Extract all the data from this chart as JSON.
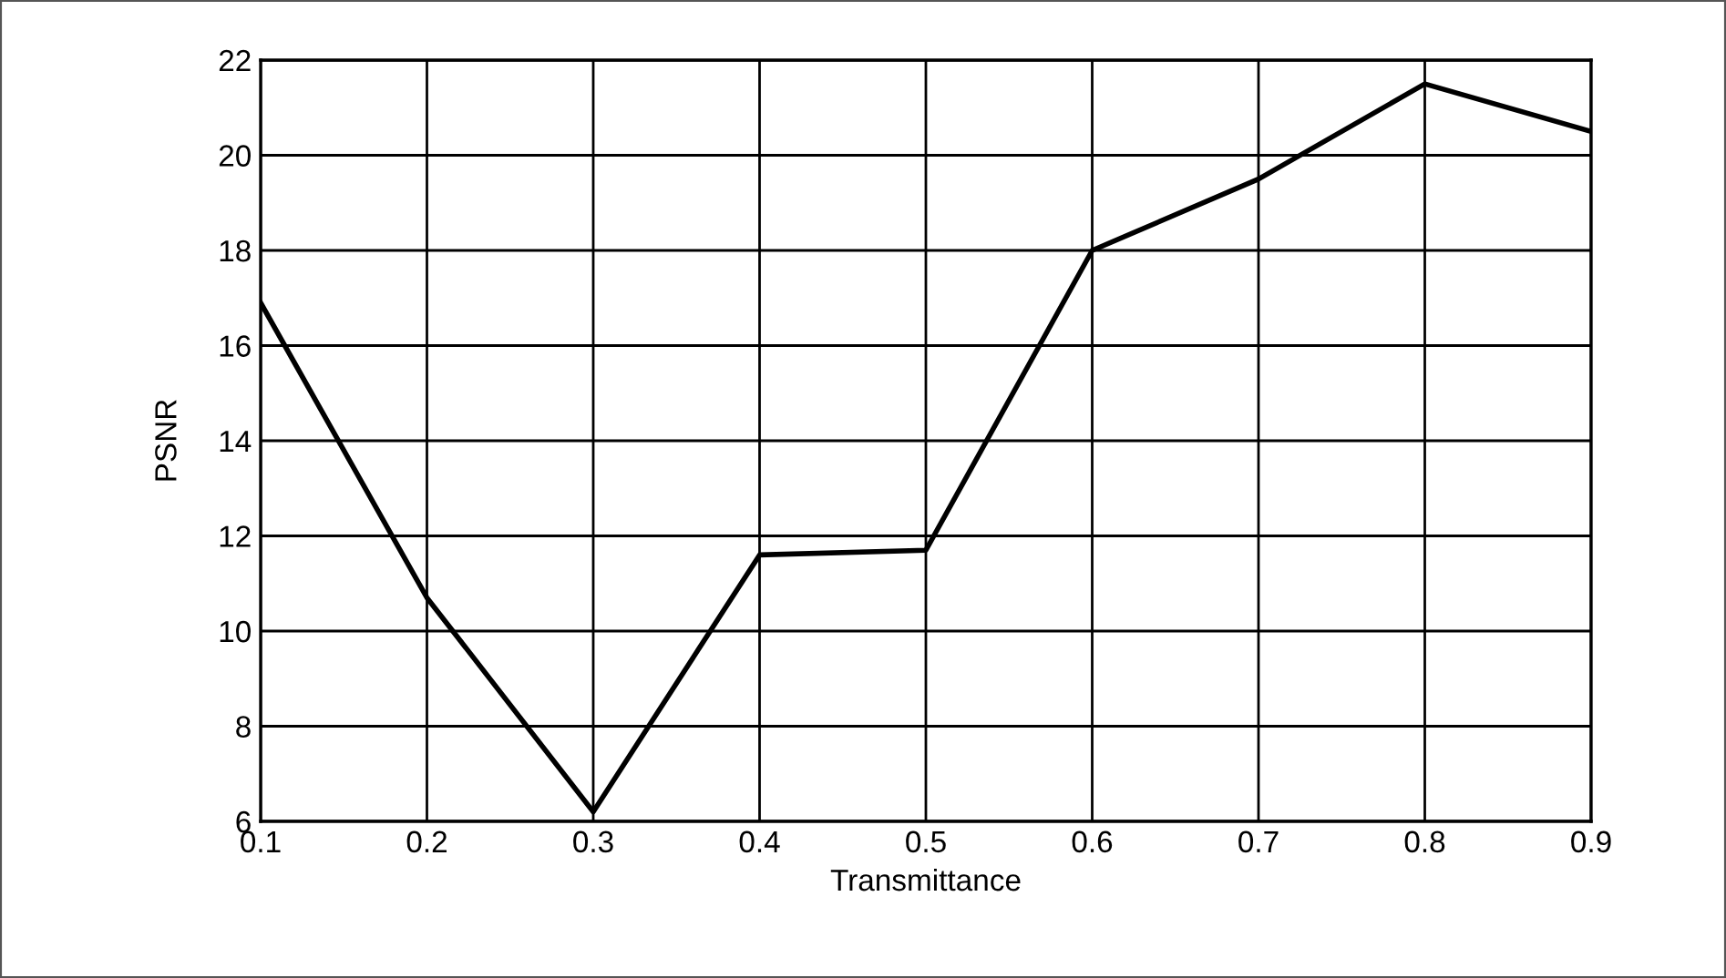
{
  "chart_data": {
    "type": "line",
    "xlabel": "Transmittance",
    "ylabel": "PSNR",
    "x": [
      0.1,
      0.2,
      0.3,
      0.4,
      0.5,
      0.6,
      0.7,
      0.8,
      0.9
    ],
    "series": [
      {
        "color": "#000000",
        "values": [
          16.9,
          10.7,
          6.2,
          11.6,
          11.7,
          18.0,
          19.5,
          21.5,
          20.5
        ]
      }
    ],
    "xlim": [
      0.1,
      0.9
    ],
    "xticks": [
      0.1,
      0.2,
      0.3,
      0.4,
      0.5,
      0.6,
      0.7,
      0.8,
      0.9
    ],
    "ylim": [
      6,
      22
    ],
    "yticks": [
      6,
      8,
      10,
      12,
      14,
      16,
      18,
      20,
      22
    ],
    "grid": true,
    "legend": false,
    "marker": "none",
    "line_style": "solid"
  }
}
